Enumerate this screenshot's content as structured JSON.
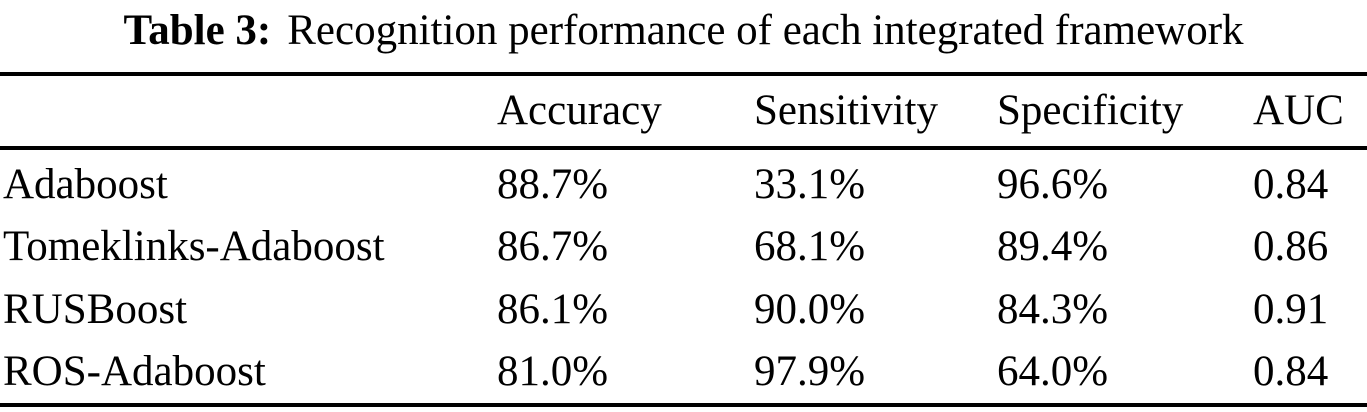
{
  "caption": {
    "label": "Table 3:",
    "text": "Recognition performance of each integrated framework"
  },
  "table": {
    "columns": [
      "",
      "Accuracy",
      "Sensitivity",
      "Specificity",
      "AUC"
    ],
    "rows": [
      {
        "name": "Adaboost",
        "accuracy": "88.7%",
        "sensitivity": "33.1%",
        "specificity": "96.6%",
        "auc": "0.84"
      },
      {
        "name": "Tomeklinks-Adaboost",
        "accuracy": "86.7%",
        "sensitivity": "68.1%",
        "specificity": "89.4%",
        "auc": "0.86"
      },
      {
        "name": "RUSBoost",
        "accuracy": "86.1%",
        "sensitivity": "90.0%",
        "specificity": "84.3%",
        "auc": "0.91"
      },
      {
        "name": "ROS-Adaboost",
        "accuracy": "81.0%",
        "sensitivity": "97.9%",
        "specificity": "64.0%",
        "auc": "0.84"
      }
    ]
  },
  "colors": {
    "text": "#000000",
    "background": "#ffffff",
    "rule": "#000000"
  }
}
